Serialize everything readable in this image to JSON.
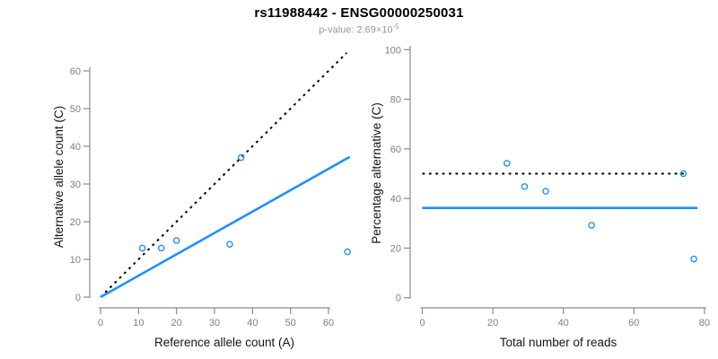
{
  "header": {
    "title": "rs11988442 - ENSG00000250031",
    "subtitle_main": "p-value: 2.69×10",
    "subtitle_exponent": "-5"
  },
  "colors": {
    "accent_blue": "#1E90FF",
    "line_black": "#000000",
    "axis_gray": "#8a8a8a",
    "tick_label_gray": "#7e7e7e",
    "subtitle_gray": "#979797",
    "label_black": "#151515"
  },
  "chart_data": [
    {
      "type": "scatter",
      "name": "allele-counts-scatter",
      "xlabel": "Reference allele count (A)",
      "ylabel": "Alternative allele count (C)",
      "xlim": [
        0,
        65
      ],
      "ylim": [
        0,
        65
      ],
      "xticks": [
        0,
        10,
        20,
        30,
        40,
        50,
        60
      ],
      "yticks": [
        0,
        10,
        20,
        30,
        40,
        50,
        60
      ],
      "grid": false,
      "legend": null,
      "points": [
        [
          11,
          13
        ],
        [
          16,
          13
        ],
        [
          20,
          15
        ],
        [
          34,
          14
        ],
        [
          37,
          37
        ],
        [
          65,
          12
        ]
      ],
      "lines": [
        {
          "name": "identity-line",
          "role": "y-equals-x-reference",
          "x1": 0,
          "y1": 0,
          "x2": 64.8,
          "y2": 64.8,
          "style": "dotted",
          "color": "#000000",
          "width": 2
        },
        {
          "name": "fit-line",
          "role": "fitted-allelic-ratio",
          "x1": 0,
          "y1": 0,
          "x2": 65.6,
          "y2": 37.2,
          "style": "solid",
          "color": "#1E90FF",
          "width": 2.6
        }
      ]
    },
    {
      "type": "scatter",
      "name": "percentage-vs-reads-scatter",
      "xlabel": "Total number of reads",
      "ylabel": "Percentage alternative (C)",
      "xlim": [
        0,
        80
      ],
      "ylim": [
        0,
        100
      ],
      "xticks": [
        0,
        20,
        40,
        60,
        80
      ],
      "yticks": [
        0,
        20,
        40,
        60,
        80,
        100
      ],
      "grid": false,
      "legend": null,
      "points": [
        [
          24,
          54.2
        ],
        [
          29,
          44.8
        ],
        [
          35,
          42.9
        ],
        [
          48,
          29.2
        ],
        [
          74,
          50
        ],
        [
          77,
          15.6
        ]
      ],
      "lines": [
        {
          "name": "fifty-percent-line",
          "role": "50-percent-reference",
          "x1": 0,
          "y1": 50,
          "x2": 74.6,
          "y2": 50,
          "style": "dotted",
          "color": "#000000",
          "width": 2
        },
        {
          "name": "mean-percentage-line",
          "role": "mean-alternative-percentage",
          "x1": 0,
          "y1": 36.2,
          "x2": 78,
          "y2": 36.2,
          "style": "solid",
          "color": "#1E90FF",
          "width": 2.6
        }
      ]
    }
  ]
}
